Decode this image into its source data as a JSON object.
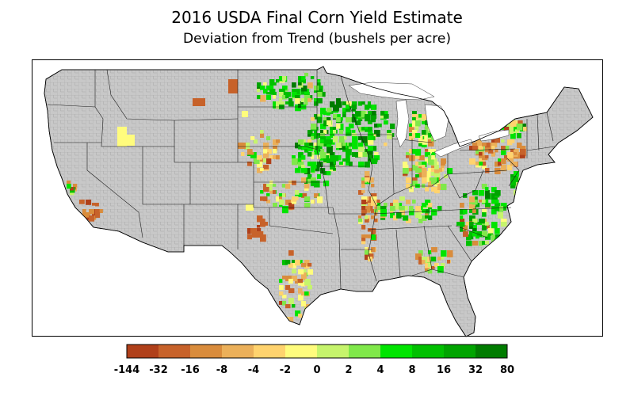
{
  "title": "2016 USDA Final Corn Yield Estimate",
  "subtitle": "Deviation from Trend (bushels per acre)",
  "map": {
    "land_color": "#c8c8c8",
    "county_line_color": "#9a9a9a",
    "border_color": "#000000",
    "water_color": "#ffffff"
  },
  "colorbar": {
    "ticks": [
      "-144",
      "-32",
      "-16",
      "-8",
      "-4",
      "-2",
      "0",
      "2",
      "4",
      "8",
      "16",
      "32",
      "80"
    ],
    "colors": [
      "#b0401a",
      "#c7622a",
      "#d98c3c",
      "#ebb05a",
      "#ffd36e",
      "#fffc7d",
      "#c6f46c",
      "#80e84a",
      "#00e400",
      "#00c000",
      "#00a400",
      "#007c00"
    ]
  }
}
